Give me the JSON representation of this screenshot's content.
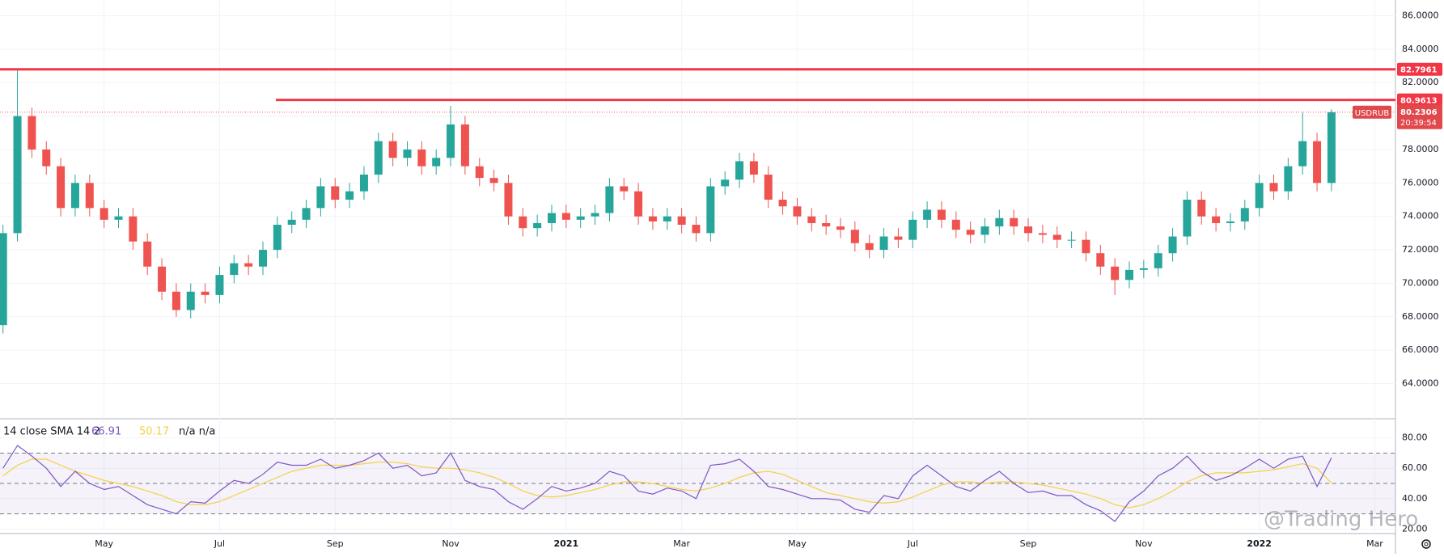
{
  "chart_data": [
    {
      "type": "candlestick",
      "symbol": "USDRUB",
      "countdown": "20:39:54",
      "up_color": "#26a69a",
      "down_color": "#ef5350",
      "categories": [
        null,
        null,
        null,
        null,
        null,
        null,
        null,
        "May",
        null,
        null,
        null,
        null,
        null,
        null,
        null,
        "Jul",
        null,
        null,
        null,
        null,
        null,
        null,
        null,
        "Sep",
        null,
        null,
        null,
        null,
        null,
        null,
        null,
        "Nov",
        null,
        null,
        null,
        null,
        null,
        null,
        null,
        "2021",
        null,
        null,
        null,
        null,
        null,
        null,
        null,
        "Mar",
        null,
        null,
        null,
        null,
        null,
        null,
        null,
        "May",
        null,
        null,
        null,
        null,
        null,
        null,
        null,
        "Jul",
        null,
        null,
        null,
        null,
        null,
        null,
        null,
        "Sep",
        null,
        null,
        null,
        null,
        null,
        null,
        null,
        "Nov",
        null,
        null,
        null,
        null,
        null,
        null,
        null,
        "2022",
        null,
        null,
        null,
        null,
        null,
        null,
        null,
        "Mar"
      ],
      "open": [
        67.5,
        73,
        80,
        78,
        77,
        74.5,
        76,
        74.5,
        73.8,
        74,
        72.5,
        71,
        69.5,
        68.4,
        69.5,
        69.3,
        70.5,
        71.2,
        71,
        72,
        73.5,
        73.8,
        74.5,
        75.8,
        75,
        75.5,
        76.5,
        78.5,
        77.5,
        78,
        77,
        77.5,
        79.5,
        77,
        76.3,
        76,
        74,
        73.3,
        73.6,
        74.2,
        73.8,
        74,
        74.2,
        75.8,
        75.5,
        74,
        73.7,
        74,
        73.5,
        73,
        75.8,
        76.2,
        77.3,
        76.5,
        75,
        74.6,
        74,
        73.6,
        73.4,
        73.2,
        72.4,
        72,
        72.8,
        72.6,
        73.8,
        74.4,
        73.8,
        73.2,
        72.9,
        73.4,
        73.9,
        73.4,
        73,
        72.9,
        72.6,
        72.6,
        71.8,
        71,
        70.2,
        70.8,
        70.9,
        71.8,
        72.8,
        75,
        74,
        73.6,
        73.7,
        74.5,
        76,
        75.5,
        77,
        78.5,
        76,
        null,
        null,
        null
      ],
      "high": [
        73.5,
        82.8,
        80.5,
        78.5,
        77.5,
        76.5,
        76.5,
        75,
        74.5,
        74.5,
        73,
        71.5,
        70,
        70,
        70,
        71,
        71.7,
        71.7,
        72.5,
        74,
        74.3,
        75,
        76.3,
        76.3,
        76,
        77,
        79,
        79,
        78.5,
        78.5,
        78,
        80.6,
        80,
        77.5,
        76.8,
        76.5,
        74.5,
        74.1,
        74.7,
        74.7,
        74.5,
        74.7,
        76.3,
        76.3,
        76,
        74.5,
        74.5,
        74.5,
        74,
        76.3,
        76.7,
        77.8,
        77.8,
        77,
        75.5,
        75.1,
        74.5,
        74.1,
        73.9,
        73.7,
        72.9,
        73.3,
        73.3,
        74.3,
        74.9,
        74.9,
        74.3,
        73.7,
        73.9,
        74.4,
        74.4,
        73.9,
        73.5,
        73.4,
        73.1,
        73.1,
        72.3,
        71.5,
        71.3,
        71.4,
        72.3,
        73.3,
        75.5,
        75.5,
        74.5,
        74.2,
        75,
        76.5,
        76.5,
        77.5,
        80.2,
        79,
        80.4,
        null,
        null,
        null
      ],
      "low": [
        67,
        72.5,
        77.5,
        76.5,
        74,
        74,
        74,
        73.3,
        73.3,
        72,
        70.5,
        69,
        68,
        67.9,
        68.8,
        68.8,
        70,
        70.5,
        70.5,
        71.5,
        73,
        73.3,
        74,
        74.5,
        74.5,
        75,
        76,
        77,
        77,
        76.5,
        76.5,
        77,
        76.5,
        75.8,
        75.5,
        73.5,
        72.8,
        72.8,
        73.1,
        73.3,
        73.3,
        73.5,
        73.7,
        75,
        73.5,
        73.2,
        73.2,
        73,
        72.5,
        72.5,
        75.3,
        75.7,
        76,
        74.5,
        74.1,
        73.5,
        73.1,
        72.9,
        72.7,
        71.9,
        71.5,
        71.5,
        72.1,
        72.1,
        73.3,
        73.3,
        72.7,
        72.4,
        72.4,
        72.9,
        72.9,
        72.5,
        72.4,
        72.1,
        72.1,
        71.3,
        70.5,
        69.3,
        69.7,
        70.3,
        70.4,
        71.3,
        72.3,
        73.5,
        73.1,
        73.1,
        73.2,
        74,
        75,
        75,
        76.5,
        75.5,
        75.5,
        null,
        null,
        null
      ],
      "close": [
        73,
        80,
        78,
        77,
        74.5,
        76,
        74.5,
        73.8,
        74,
        72.5,
        71,
        69.5,
        68.4,
        69.5,
        69.3,
        70.5,
        71.2,
        71,
        72,
        73.5,
        73.8,
        74.5,
        75.8,
        75,
        75.5,
        76.5,
        78.5,
        77.5,
        78,
        77,
        77.5,
        79.5,
        77,
        76.3,
        76,
        74,
        73.3,
        73.6,
        74.2,
        73.8,
        74,
        74.2,
        75.8,
        75.5,
        74,
        73.7,
        74,
        73.5,
        73,
        75.8,
        76.2,
        77.3,
        76.5,
        75,
        74.6,
        74,
        73.6,
        73.4,
        73.2,
        72.4,
        72,
        72.8,
        72.6,
        73.8,
        74.4,
        73.8,
        73.2,
        72.9,
        73.4,
        73.9,
        73.4,
        73,
        72.9,
        72.6,
        72.6,
        71.8,
        71,
        70.2,
        70.8,
        70.9,
        71.8,
        72.8,
        75,
        74,
        73.6,
        73.7,
        74.5,
        76,
        75.5,
        77,
        78.5,
        76,
        80.2306,
        null,
        null,
        null
      ],
      "levels": [
        82.7961,
        80.9613
      ],
      "level_color": "#f23645",
      "ylim": [
        61.9,
        86.94
      ],
      "yticks": [
        {
          "value": 64,
          "label": "64.0000"
        },
        {
          "value": 66,
          "label": "66.0000"
        },
        {
          "value": 68,
          "label": "68.0000"
        },
        {
          "value": 70,
          "label": "70.0000"
        },
        {
          "value": 72,
          "label": "72.0000"
        },
        {
          "value": 74,
          "label": "74.0000"
        },
        {
          "value": 76,
          "label": "76.0000"
        },
        {
          "value": 78,
          "label": "78.0000"
        },
        {
          "value": 80,
          "label": "80.0000"
        },
        {
          "value": 82,
          "label": "82.0000"
        },
        {
          "value": 84,
          "label": "84.0000"
        },
        {
          "value": 86,
          "label": "86.0000"
        }
      ],
      "grid": true
    },
    {
      "type": "line",
      "title": "14 close SMA 14 2",
      "extra": "n/a n/a",
      "watermark": "@Trading Hero",
      "series": [
        {
          "color": "#7e57c2",
          "last_label": "66.91",
          "values": [
            60,
            75,
            68,
            60,
            48,
            58,
            50,
            46,
            48,
            42,
            36,
            33,
            30,
            38,
            37,
            45,
            52,
            50,
            56,
            64,
            62,
            62,
            66,
            60,
            62,
            65,
            70,
            60,
            62,
            55,
            57,
            70,
            52,
            48,
            46,
            38,
            33,
            40,
            48,
            45,
            47,
            50,
            58,
            55,
            45,
            43,
            47,
            45,
            40,
            62,
            63,
            66,
            58,
            48,
            46,
            43,
            40,
            40,
            39,
            33,
            31,
            42,
            40,
            55,
            62,
            55,
            48,
            45,
            52,
            58,
            50,
            44,
            45,
            42,
            42,
            36,
            32,
            25,
            38,
            45,
            55,
            60,
            68,
            58,
            52,
            55,
            60,
            66,
            60,
            66,
            68,
            48,
            66.91,
            null,
            null,
            null
          ]
        },
        {
          "color": "#f5d142",
          "last_label": "50.17",
          "values": [
            55,
            62,
            66,
            66,
            62,
            58,
            55,
            52,
            50,
            48,
            45,
            42,
            38,
            36,
            36,
            38,
            42,
            46,
            50,
            54,
            58,
            60,
            62,
            62,
            62,
            63,
            64,
            64,
            63,
            61,
            60,
            60,
            59,
            57,
            54,
            50,
            45,
            42,
            41,
            42,
            44,
            46,
            49,
            51,
            51,
            50,
            48,
            46,
            45,
            47,
            50,
            54,
            57,
            58,
            56,
            52,
            48,
            44,
            42,
            40,
            38,
            37,
            38,
            41,
            45,
            49,
            51,
            51,
            50,
            51,
            51,
            50,
            49,
            47,
            45,
            43,
            40,
            36,
            34,
            36,
            40,
            45,
            51,
            55,
            57,
            57,
            57,
            58,
            59,
            61,
            63,
            60,
            50.17,
            null,
            null,
            null
          ]
        }
      ],
      "bands": [
        70,
        50,
        30
      ],
      "ylim": [
        17,
        92.6
      ],
      "yticks": [
        {
          "value": 20,
          "label": "20.00"
        },
        {
          "value": 40,
          "label": "40.00"
        },
        {
          "value": 60,
          "label": "60.00"
        },
        {
          "value": 80,
          "label": "80.00"
        }
      ]
    }
  ]
}
